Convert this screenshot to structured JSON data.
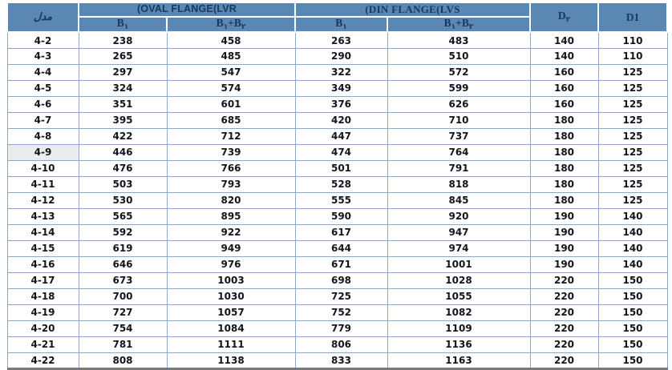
{
  "colors": {
    "header_bg": "#5b87b5",
    "header_text": "#17375e",
    "body_border": "#8ea9c8",
    "body_text": "#14141f",
    "shaded_cell_bg": "#ececec",
    "bottom_border": "#7a7a7a"
  },
  "table": {
    "model_header": "مدل",
    "oval_group_label": "(OVAL FLANGE(LVR",
    "din_group_label": "(DIN FLANGE(LVS",
    "b_headers": {
      "b1_base": "B",
      "b1_sub": "۱",
      "plus": "+",
      "b2_base": "B",
      "b2_sub": "۲"
    },
    "d2_header": {
      "base": "D",
      "sub": "۲"
    },
    "d1_header": "D1",
    "shaded_model": "4-9",
    "rows": [
      {
        "model": "4-2",
        "values": [
          "238",
          "458",
          "263",
          "483",
          "140",
          "110"
        ]
      },
      {
        "model": "4-3",
        "values": [
          "265",
          "485",
          "290",
          "510",
          "140",
          "110"
        ]
      },
      {
        "model": "4-4",
        "values": [
          "297",
          "547",
          "322",
          "572",
          "160",
          "125"
        ]
      },
      {
        "model": "4-5",
        "values": [
          "324",
          "574",
          "349",
          "599",
          "160",
          "125"
        ]
      },
      {
        "model": "4-6",
        "values": [
          "351",
          "601",
          "376",
          "626",
          "160",
          "125"
        ]
      },
      {
        "model": "4-7",
        "values": [
          "395",
          "685",
          "420",
          "710",
          "180",
          "125"
        ]
      },
      {
        "model": "4-8",
        "values": [
          "422",
          "712",
          "447",
          "737",
          "180",
          "125"
        ]
      },
      {
        "model": "4-9",
        "values": [
          "446",
          "739",
          "474",
          "764",
          "180",
          "125"
        ]
      },
      {
        "model": "4-10",
        "values": [
          "476",
          "766",
          "501",
          "791",
          "180",
          "125"
        ]
      },
      {
        "model": "4-11",
        "values": [
          "503",
          "793",
          "528",
          "818",
          "180",
          "125"
        ]
      },
      {
        "model": "4-12",
        "values": [
          "530",
          "820",
          "555",
          "845",
          "180",
          "125"
        ]
      },
      {
        "model": "4-13",
        "values": [
          "565",
          "895",
          "590",
          "920",
          "190",
          "140"
        ]
      },
      {
        "model": "4-14",
        "values": [
          "592",
          "922",
          "617",
          "947",
          "190",
          "140"
        ]
      },
      {
        "model": "4-15",
        "values": [
          "619",
          "949",
          "644",
          "974",
          "190",
          "140"
        ]
      },
      {
        "model": "4-16",
        "values": [
          "646",
          "976",
          "671",
          "1001",
          "190",
          "140"
        ]
      },
      {
        "model": "4-17",
        "values": [
          "673",
          "1003",
          "698",
          "1028",
          "220",
          "150"
        ]
      },
      {
        "model": "4-18",
        "values": [
          "700",
          "1030",
          "725",
          "1055",
          "220",
          "150"
        ]
      },
      {
        "model": "4-19",
        "values": [
          "727",
          "1057",
          "752",
          "1082",
          "220",
          "150"
        ]
      },
      {
        "model": "4-20",
        "values": [
          "754",
          "1084",
          "779",
          "1109",
          "220",
          "150"
        ]
      },
      {
        "model": "4-21",
        "values": [
          "781",
          "1111",
          "806",
          "1136",
          "220",
          "150"
        ]
      },
      {
        "model": "4-22",
        "values": [
          "808",
          "1138",
          "833",
          "1163",
          "220",
          "150"
        ]
      }
    ]
  }
}
